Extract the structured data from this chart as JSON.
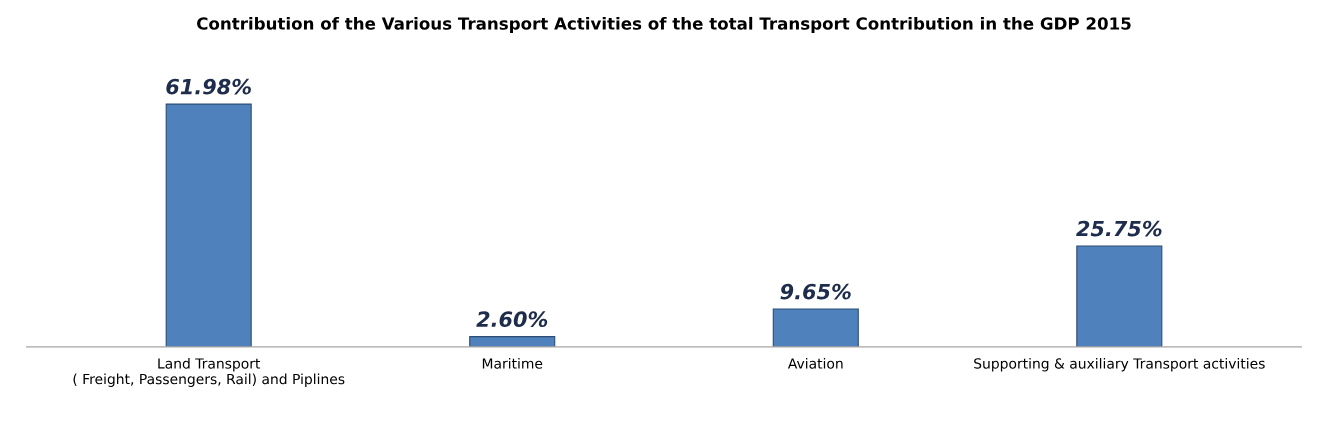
{
  "chart_data": {
    "type": "bar",
    "title": "Contribution of the Various Transport Activities of the total Transport Contribution in the GDP 2015",
    "categories": [
      "Land Transport\n( Freight, Passengers, Rail) and Piplines",
      "Maritime",
      "Aviation",
      "Supporting & auxiliary Transport activities"
    ],
    "values": [
      61.98,
      2.6,
      9.65,
      25.75
    ],
    "value_labels": [
      "61.98%",
      "2.60%",
      "9.65%",
      "25.75%"
    ],
    "color": "#4f81bd",
    "grid": false,
    "legend": false
  }
}
